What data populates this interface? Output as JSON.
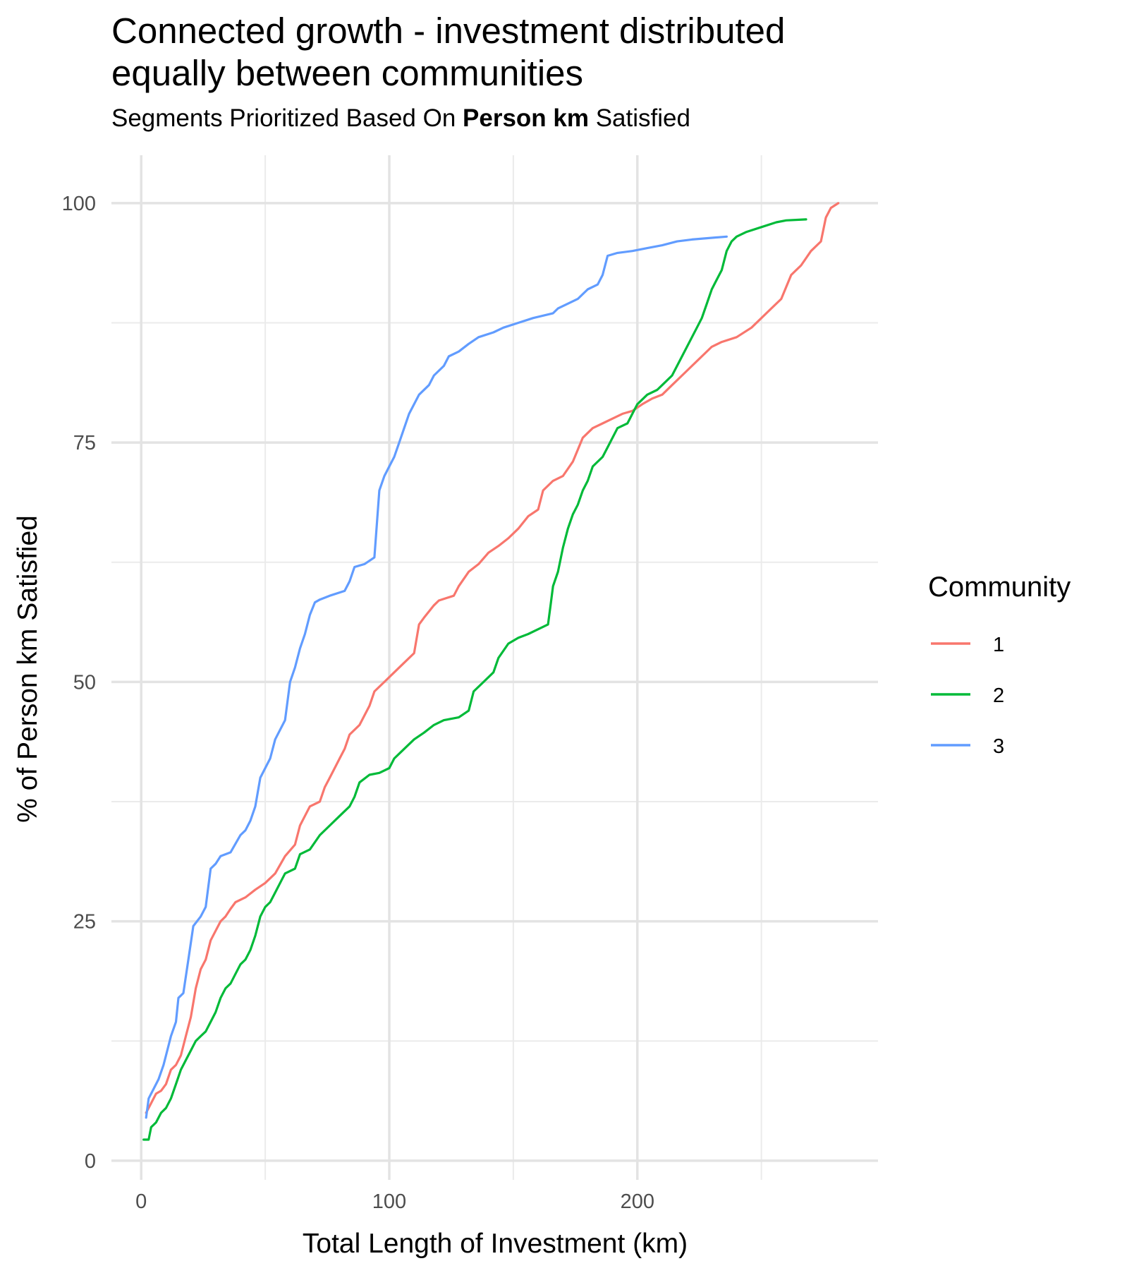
{
  "chart_data": {
    "type": "line",
    "title_line1": "Connected growth - investment distributed",
    "title_line2": "equally between communities",
    "subtitle_pre": "Segments Prioritized Based On ",
    "subtitle_bold": "Person km",
    "subtitle_post": " Satisfied",
    "xlabel": "Total Length of Investment (km)",
    "ylabel": "% of Person km Satisfied",
    "xlim": [
      -12,
      297
    ],
    "ylim": [
      -2,
      105
    ],
    "xticks": [
      0,
      100,
      200
    ],
    "xminor": [
      50,
      150,
      250
    ],
    "yticks": [
      0,
      25,
      50,
      75,
      100
    ],
    "yminor": [
      12.5,
      37.5,
      62.5,
      87.5
    ],
    "grid": true,
    "legend_title": "Community",
    "legend_position": "right",
    "series": [
      {
        "name": "1",
        "color": "#F8766D",
        "points": [
          [
            2,
            5
          ],
          [
            4,
            6
          ],
          [
            6,
            7
          ],
          [
            8,
            7.3
          ],
          [
            10,
            8
          ],
          [
            12,
            9.5
          ],
          [
            14,
            10
          ],
          [
            16,
            11
          ],
          [
            18,
            13
          ],
          [
            20,
            15
          ],
          [
            22,
            18
          ],
          [
            24,
            20
          ],
          [
            26,
            21
          ],
          [
            28,
            23
          ],
          [
            30,
            24
          ],
          [
            32,
            25
          ],
          [
            34,
            25.5
          ],
          [
            36,
            26.3
          ],
          [
            38,
            27
          ],
          [
            42,
            27.5
          ],
          [
            46,
            28.3
          ],
          [
            50,
            29
          ],
          [
            54,
            30
          ],
          [
            58,
            31.8
          ],
          [
            62,
            33
          ],
          [
            64,
            35
          ],
          [
            66,
            36
          ],
          [
            68,
            37
          ],
          [
            72,
            37.5
          ],
          [
            74,
            39
          ],
          [
            76,
            40
          ],
          [
            78,
            41
          ],
          [
            80,
            42
          ],
          [
            82,
            43
          ],
          [
            84,
            44.5
          ],
          [
            88,
            45.5
          ],
          [
            90,
            46.5
          ],
          [
            92,
            47.5
          ],
          [
            94,
            49
          ],
          [
            98,
            50
          ],
          [
            102,
            51
          ],
          [
            106,
            52
          ],
          [
            110,
            53
          ],
          [
            112,
            56
          ],
          [
            114,
            56.7
          ],
          [
            118,
            58
          ],
          [
            120,
            58.5
          ],
          [
            126,
            59
          ],
          [
            128,
            60
          ],
          [
            132,
            61.5
          ],
          [
            136,
            62.3
          ],
          [
            140,
            63.5
          ],
          [
            144,
            64.2
          ],
          [
            148,
            65
          ],
          [
            152,
            66
          ],
          [
            156,
            67.3
          ],
          [
            160,
            68
          ],
          [
            162,
            70
          ],
          [
            166,
            71
          ],
          [
            170,
            71.5
          ],
          [
            174,
            73
          ],
          [
            178,
            75.5
          ],
          [
            182,
            76.5
          ],
          [
            186,
            77
          ],
          [
            190,
            77.5
          ],
          [
            194,
            78
          ],
          [
            198,
            78.3
          ],
          [
            202,
            79
          ],
          [
            206,
            79.6
          ],
          [
            210,
            80
          ],
          [
            214,
            81
          ],
          [
            218,
            82
          ],
          [
            222,
            83
          ],
          [
            226,
            84
          ],
          [
            230,
            85
          ],
          [
            234,
            85.5
          ],
          [
            240,
            86
          ],
          [
            246,
            87
          ],
          [
            250,
            88
          ],
          [
            254,
            89
          ],
          [
            258,
            90
          ],
          [
            262,
            92.5
          ],
          [
            266,
            93.5
          ],
          [
            270,
            95
          ],
          [
            274,
            96
          ],
          [
            276,
            98.5
          ],
          [
            278,
            99.5
          ],
          [
            281,
            100
          ]
        ]
      },
      {
        "name": "2",
        "color": "#00BA38",
        "points": [
          [
            1,
            2.2
          ],
          [
            3,
            2.2
          ],
          [
            4,
            3.5
          ],
          [
            6,
            4
          ],
          [
            8,
            5
          ],
          [
            10,
            5.5
          ],
          [
            12,
            6.5
          ],
          [
            14,
            8
          ],
          [
            16,
            9.5
          ],
          [
            18,
            10.5
          ],
          [
            20,
            11.5
          ],
          [
            22,
            12.5
          ],
          [
            24,
            13
          ],
          [
            26,
            13.5
          ],
          [
            28,
            14.5
          ],
          [
            30,
            15.5
          ],
          [
            32,
            17
          ],
          [
            34,
            18
          ],
          [
            36,
            18.5
          ],
          [
            38,
            19.5
          ],
          [
            40,
            20.5
          ],
          [
            42,
            21
          ],
          [
            44,
            22
          ],
          [
            46,
            23.5
          ],
          [
            48,
            25.5
          ],
          [
            50,
            26.5
          ],
          [
            52,
            27
          ],
          [
            54,
            28
          ],
          [
            56,
            29
          ],
          [
            58,
            30
          ],
          [
            62,
            30.5
          ],
          [
            64,
            32
          ],
          [
            68,
            32.5
          ],
          [
            72,
            34
          ],
          [
            76,
            35
          ],
          [
            80,
            36
          ],
          [
            84,
            37
          ],
          [
            86,
            38
          ],
          [
            88,
            39.5
          ],
          [
            92,
            40.3
          ],
          [
            96,
            40.5
          ],
          [
            100,
            41
          ],
          [
            102,
            42
          ],
          [
            106,
            43
          ],
          [
            110,
            44
          ],
          [
            114,
            44.7
          ],
          [
            118,
            45.5
          ],
          [
            122,
            46
          ],
          [
            128,
            46.3
          ],
          [
            132,
            47
          ],
          [
            134,
            49
          ],
          [
            138,
            50
          ],
          [
            142,
            51
          ],
          [
            144,
            52.5
          ],
          [
            148,
            54
          ],
          [
            152,
            54.6
          ],
          [
            156,
            55
          ],
          [
            160,
            55.5
          ],
          [
            164,
            56
          ],
          [
            165,
            58
          ],
          [
            166,
            60
          ],
          [
            168,
            61.5
          ],
          [
            170,
            64
          ],
          [
            172,
            66
          ],
          [
            174,
            67.5
          ],
          [
            176,
            68.5
          ],
          [
            178,
            70
          ],
          [
            180,
            71
          ],
          [
            182,
            72.5
          ],
          [
            186,
            73.5
          ],
          [
            188,
            74.5
          ],
          [
            192,
            76.5
          ],
          [
            196,
            77
          ],
          [
            198,
            78
          ],
          [
            200,
            79
          ],
          [
            204,
            80
          ],
          [
            208,
            80.5
          ],
          [
            210,
            81
          ],
          [
            214,
            82
          ],
          [
            218,
            84
          ],
          [
            222,
            86
          ],
          [
            224,
            87
          ],
          [
            226,
            88
          ],
          [
            228,
            89.5
          ],
          [
            230,
            91
          ],
          [
            232,
            92
          ],
          [
            234,
            93
          ],
          [
            236,
            95
          ],
          [
            238,
            96
          ],
          [
            240,
            96.5
          ],
          [
            244,
            97
          ],
          [
            250,
            97.5
          ],
          [
            256,
            98
          ],
          [
            260,
            98.2
          ],
          [
            268,
            98.3
          ]
        ]
      },
      {
        "name": "3",
        "color": "#619CFF",
        "points": [
          [
            2,
            4.5
          ],
          [
            3,
            6.5
          ],
          [
            5,
            7.5
          ],
          [
            7,
            8.5
          ],
          [
            9,
            10
          ],
          [
            10,
            11
          ],
          [
            12,
            13
          ],
          [
            14,
            14.5
          ],
          [
            15,
            17
          ],
          [
            17,
            17.5
          ],
          [
            19,
            21
          ],
          [
            21,
            24.5
          ],
          [
            24,
            25.5
          ],
          [
            26,
            26.5
          ],
          [
            28,
            30.5
          ],
          [
            30,
            31
          ],
          [
            32,
            31.8
          ],
          [
            36,
            32.2
          ],
          [
            40,
            34
          ],
          [
            42,
            34.5
          ],
          [
            44,
            35.5
          ],
          [
            46,
            37
          ],
          [
            48,
            40
          ],
          [
            50,
            41
          ],
          [
            52,
            42
          ],
          [
            54,
            44
          ],
          [
            56,
            45
          ],
          [
            58,
            46
          ],
          [
            60,
            50
          ],
          [
            62,
            51.5
          ],
          [
            64,
            53.5
          ],
          [
            66,
            55
          ],
          [
            68,
            57
          ],
          [
            70,
            58.3
          ],
          [
            72,
            58.6
          ],
          [
            76,
            59
          ],
          [
            82,
            59.5
          ],
          [
            84,
            60.5
          ],
          [
            86,
            62
          ],
          [
            90,
            62.3
          ],
          [
            94,
            63
          ],
          [
            96,
            70
          ],
          [
            98,
            71.5
          ],
          [
            100,
            72.5
          ],
          [
            102,
            73.5
          ],
          [
            104,
            75
          ],
          [
            106,
            76.5
          ],
          [
            108,
            78
          ],
          [
            110,
            79
          ],
          [
            112,
            80
          ],
          [
            116,
            81
          ],
          [
            118,
            82
          ],
          [
            122,
            83
          ],
          [
            124,
            84
          ],
          [
            128,
            84.5
          ],
          [
            132,
            85.3
          ],
          [
            136,
            86
          ],
          [
            142,
            86.5
          ],
          [
            146,
            87
          ],
          [
            152,
            87.5
          ],
          [
            158,
            88
          ],
          [
            166,
            88.5
          ],
          [
            168,
            89
          ],
          [
            172,
            89.5
          ],
          [
            176,
            90
          ],
          [
            180,
            91
          ],
          [
            184,
            91.5
          ],
          [
            186,
            92.5
          ],
          [
            188,
            94.5
          ],
          [
            192,
            94.8
          ],
          [
            198,
            95
          ],
          [
            204,
            95.3
          ],
          [
            210,
            95.6
          ],
          [
            216,
            96
          ],
          [
            222,
            96.2
          ],
          [
            236,
            96.5
          ]
        ]
      }
    ]
  }
}
